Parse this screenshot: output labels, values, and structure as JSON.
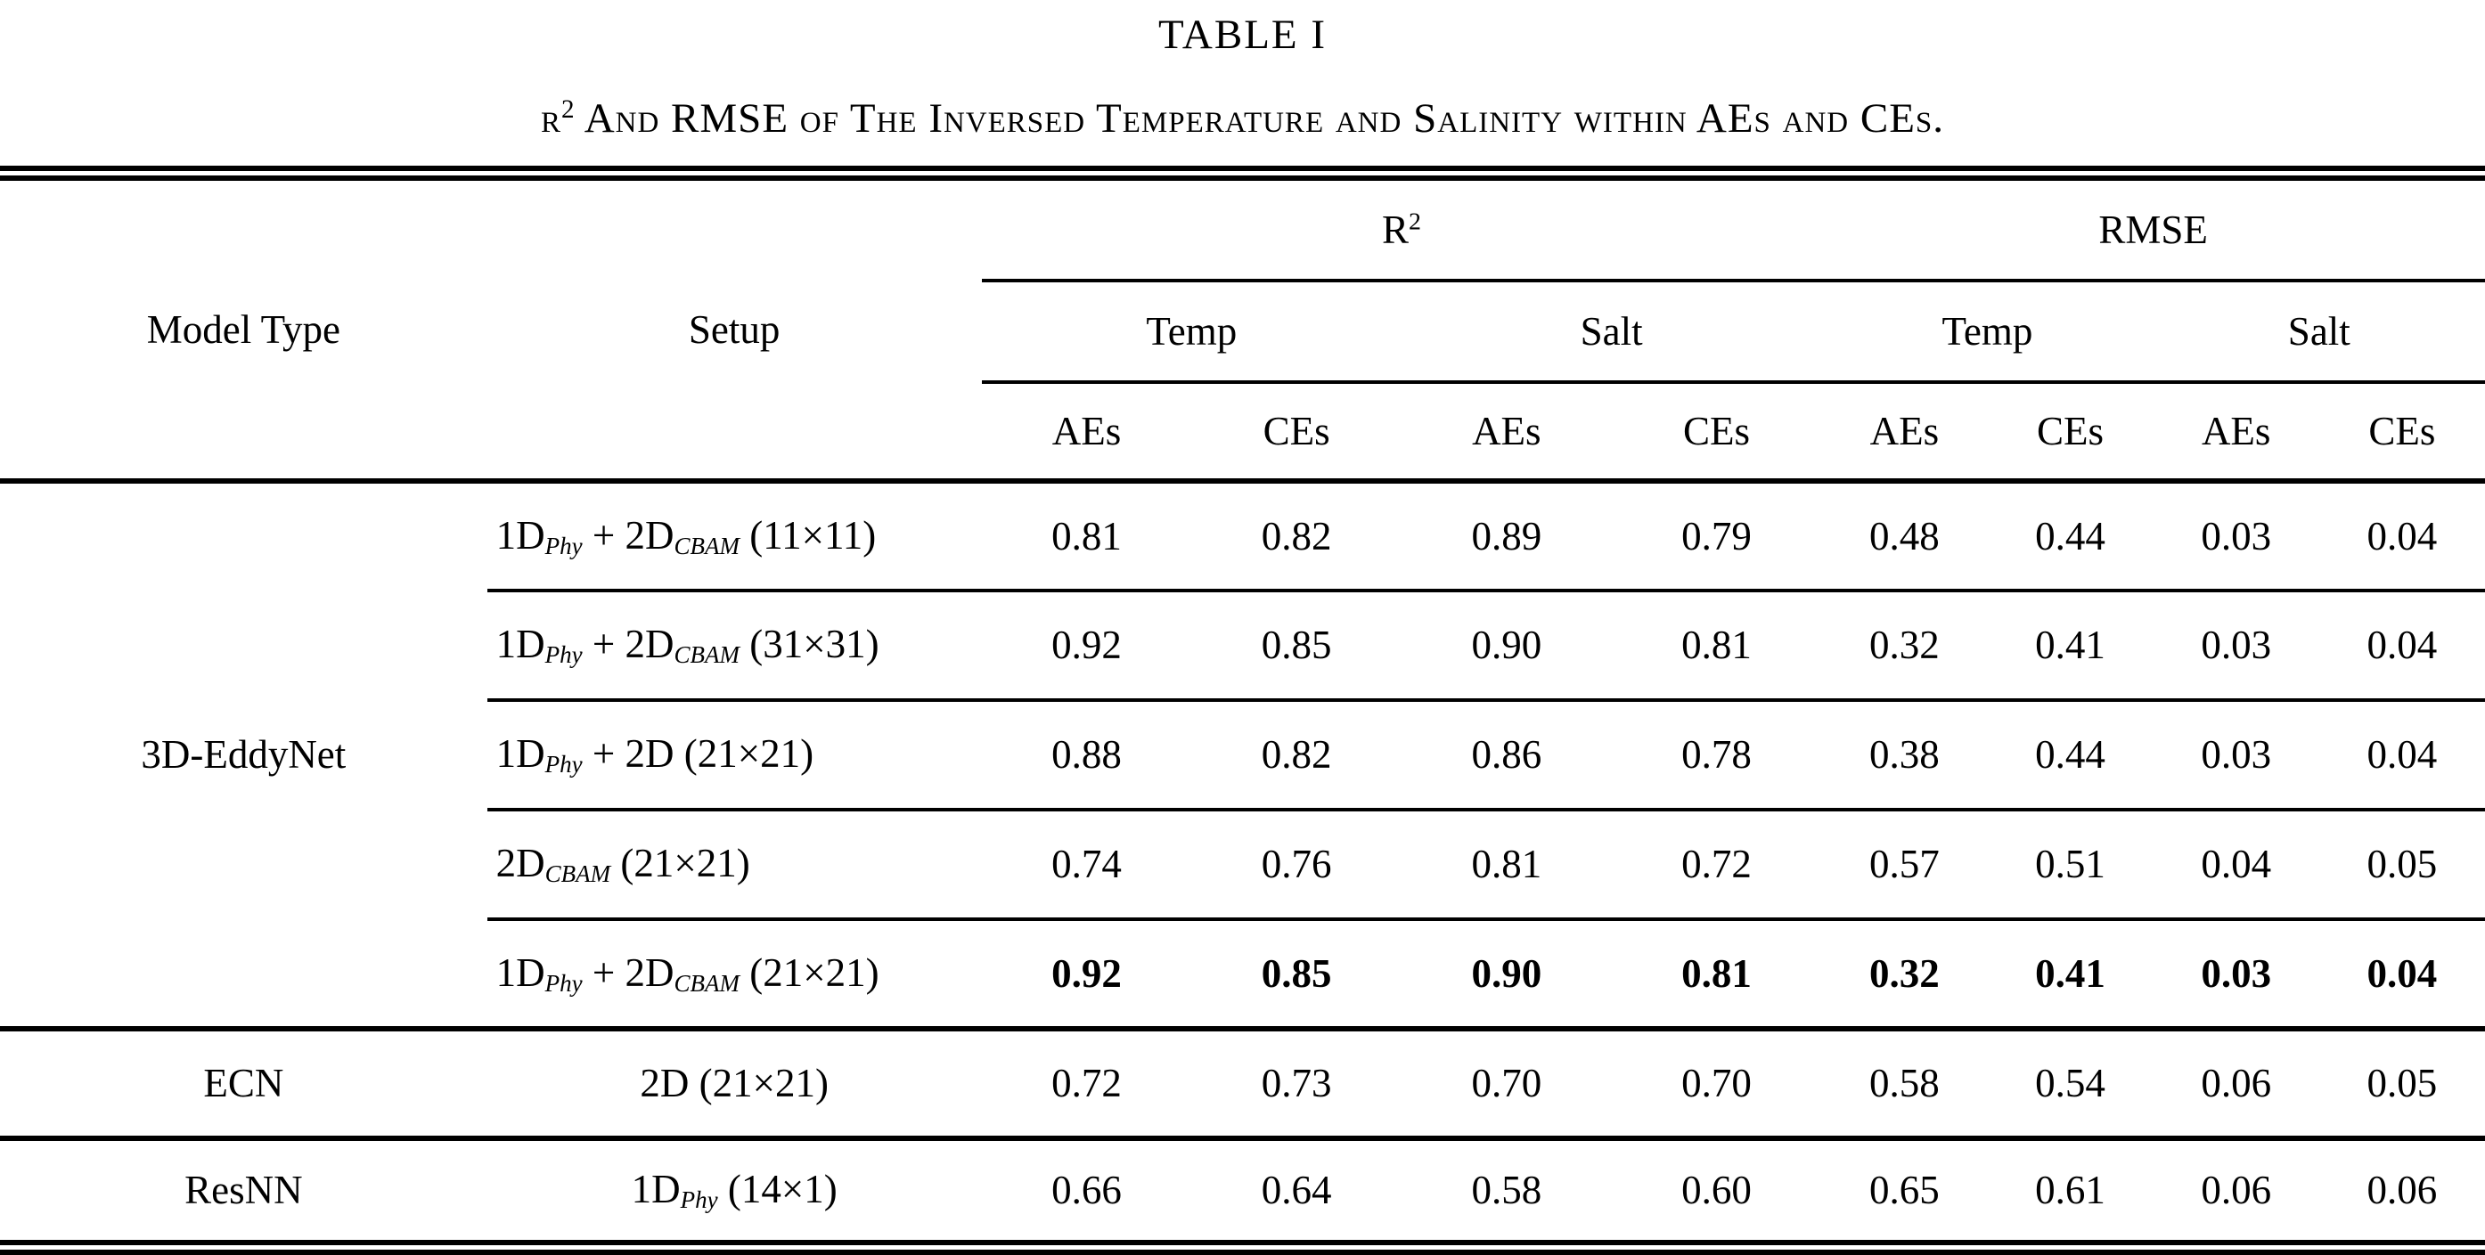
{
  "table": {
    "title": "TABLE I",
    "caption": "r^{2} And RMSE of The Inversed Temperature and Salinity within AEs and CEs.",
    "headers": {
      "model_type": "Model Type",
      "setup": "Setup",
      "r2": "R^{2}",
      "rmse": "RMSE",
      "temp": "Temp",
      "salt": "Salt",
      "aes": "AEs",
      "ces": "CEs"
    },
    "groups": [
      {
        "model": "3D-EddyNet",
        "setup_align": "left",
        "rows": [
          {
            "setup": "1D_{Phy} + 2D_{CBAM} (11×11)",
            "bold": false,
            "values": [
              "0.81",
              "0.82",
              "0.89",
              "0.79",
              "0.48",
              "0.44",
              "0.03",
              "0.04"
            ]
          },
          {
            "setup": "1D_{Phy} + 2D_{CBAM} (31×31)",
            "bold": false,
            "values": [
              "0.92",
              "0.85",
              "0.90",
              "0.81",
              "0.32",
              "0.41",
              "0.03",
              "0.04"
            ]
          },
          {
            "setup": "1D_{Phy} + 2D (21×21)",
            "bold": false,
            "values": [
              "0.88",
              "0.82",
              "0.86",
              "0.78",
              "0.38",
              "0.44",
              "0.03",
              "0.04"
            ]
          },
          {
            "setup": "2D_{CBAM} (21×21)",
            "bold": false,
            "values": [
              "0.74",
              "0.76",
              "0.81",
              "0.72",
              "0.57",
              "0.51",
              "0.04",
              "0.05"
            ]
          },
          {
            "setup": "1D_{Phy} + 2D_{CBAM} (21×21)",
            "bold": true,
            "values": [
              "0.92",
              "0.85",
              "0.90",
              "0.81",
              "0.32",
              "0.41",
              "0.03",
              "0.04"
            ]
          }
        ]
      },
      {
        "model": "ECN",
        "setup_align": "center",
        "rows": [
          {
            "setup": "2D (21×21)",
            "bold": false,
            "values": [
              "0.72",
              "0.73",
              "0.70",
              "0.70",
              "0.58",
              "0.54",
              "0.06",
              "0.05"
            ]
          }
        ]
      },
      {
        "model": "ResNN",
        "setup_align": "center",
        "rows": [
          {
            "setup": "1D_{Phy} (14×1)",
            "bold": false,
            "values": [
              "0.66",
              "0.64",
              "0.58",
              "0.60",
              "0.65",
              "0.61",
              "0.06",
              "0.06"
            ]
          }
        ]
      }
    ],
    "colors": {
      "text": "#000000",
      "background": "#ffffff",
      "rule": "#000000"
    }
  }
}
